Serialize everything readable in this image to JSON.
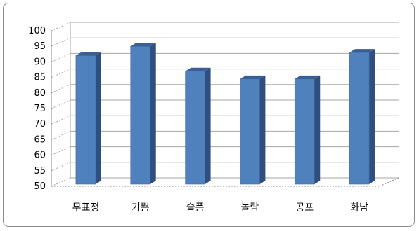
{
  "chart_data": {
    "type": "bar",
    "categories": [
      "무표정",
      "기쁨",
      "슬픔",
      "놀람",
      "공포",
      "화남"
    ],
    "values": [
      92,
      95,
      87,
      84.5,
      84.5,
      93
    ],
    "ylim": [
      50,
      100
    ],
    "yticks": [
      50,
      55,
      60,
      65,
      70,
      75,
      80,
      85,
      90,
      95,
      100
    ],
    "grid": true,
    "legend": "none",
    "colors": {
      "bar_front": "#4f81bd",
      "bar_side": "#2f4f80",
      "bar_top": "#3a5f95",
      "grid": "#a6a6a6",
      "axis": "#8c8c8c"
    }
  }
}
